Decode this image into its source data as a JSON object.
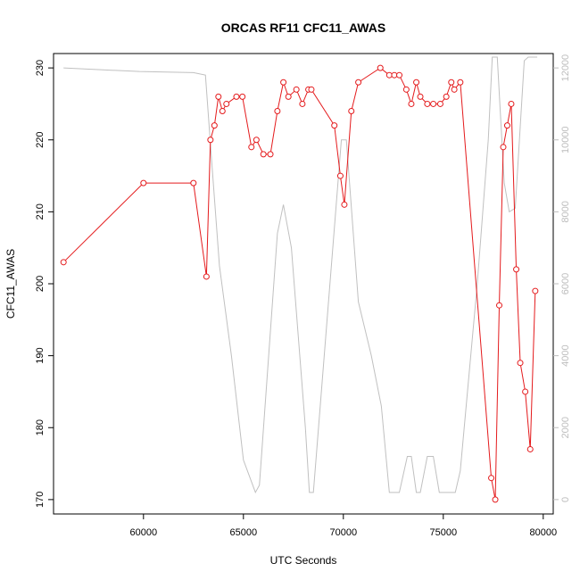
{
  "chart_data": {
    "type": "line",
    "title": "ORCAS RF11 CFC11_AWAS",
    "xlabel": "UTC Seconds",
    "ylabel": "CFC11_AWAS",
    "xlim": [
      55500,
      80500
    ],
    "ylim": [
      168,
      232
    ],
    "y2lim": [
      -400,
      12400
    ],
    "grid": false,
    "x_ticks": [
      60000,
      65000,
      70000,
      75000,
      80000
    ],
    "y_ticks": [
      170,
      180,
      190,
      200,
      210,
      220,
      230
    ],
    "y2_ticks": [
      0,
      2000,
      4000,
      6000,
      8000,
      10000,
      12000
    ],
    "x_tick_labels": [
      "60000",
      "65000",
      "70000",
      "75000",
      "80000"
    ],
    "y_tick_labels": [
      "170",
      "180",
      "190",
      "200",
      "210",
      "220",
      "230"
    ],
    "y2_tick_labels": [
      "0",
      "2000",
      "4000",
      "6000",
      "8000",
      "10000",
      "12000"
    ],
    "colors": {
      "primary": "#e41a1c",
      "secondary": "#c0c0c0"
    },
    "series": [
      {
        "axis": "left",
        "style": "line+markers",
        "points": [
          [
            56000,
            203
          ],
          [
            60000,
            214
          ],
          [
            62500,
            214
          ],
          [
            63150,
            201
          ],
          [
            63350,
            220
          ],
          [
            63550,
            222
          ],
          [
            63750,
            226
          ],
          [
            63950,
            224
          ],
          [
            64150,
            225
          ],
          [
            64650,
            226
          ],
          [
            64950,
            226
          ],
          [
            65400,
            219
          ],
          [
            65650,
            220
          ],
          [
            66000,
            218
          ],
          [
            66350,
            218
          ],
          [
            66700,
            224
          ],
          [
            67000,
            228
          ],
          [
            67250,
            226
          ],
          [
            67650,
            227
          ],
          [
            67950,
            225
          ],
          [
            68250,
            227
          ],
          [
            68400,
            227
          ],
          [
            69550,
            222
          ],
          [
            69850,
            215
          ],
          [
            70050,
            211
          ],
          [
            70400,
            224
          ],
          [
            70750,
            228
          ],
          [
            71850,
            230
          ],
          [
            72300,
            229
          ],
          [
            72550,
            229
          ],
          [
            72800,
            229
          ],
          [
            73150,
            227
          ],
          [
            73400,
            225
          ],
          [
            73650,
            228
          ],
          [
            73850,
            226
          ],
          [
            74200,
            225
          ],
          [
            74500,
            225
          ],
          [
            74850,
            225
          ],
          [
            75150,
            226
          ],
          [
            75400,
            228
          ],
          [
            75550,
            227
          ],
          [
            75850,
            228
          ],
          [
            77400,
            173
          ],
          [
            77600,
            170
          ],
          [
            77800,
            197
          ],
          [
            78000,
            219
          ],
          [
            78200,
            222
          ],
          [
            78400,
            225
          ],
          [
            78650,
            202
          ],
          [
            78850,
            189
          ],
          [
            79100,
            185
          ],
          [
            79350,
            177
          ],
          [
            79600,
            199
          ]
        ]
      },
      {
        "axis": "right",
        "style": "line",
        "points": [
          [
            56000,
            12000
          ],
          [
            59800,
            11900
          ],
          [
            62500,
            11870
          ],
          [
            63100,
            11800
          ],
          [
            63400,
            9500
          ],
          [
            63800,
            6500
          ],
          [
            64400,
            4000
          ],
          [
            65000,
            1100
          ],
          [
            65600,
            200
          ],
          [
            65800,
            400
          ],
          [
            66700,
            7400
          ],
          [
            67000,
            8200
          ],
          [
            67400,
            7000
          ],
          [
            68100,
            2000
          ],
          [
            68300,
            200
          ],
          [
            68500,
            200
          ],
          [
            69900,
            10000
          ],
          [
            70150,
            10000
          ],
          [
            70750,
            5500
          ],
          [
            71400,
            4000
          ],
          [
            71900,
            2600
          ],
          [
            72300,
            200
          ],
          [
            72800,
            200
          ],
          [
            73200,
            1200
          ],
          [
            73400,
            1200
          ],
          [
            73650,
            200
          ],
          [
            73850,
            200
          ],
          [
            74200,
            1200
          ],
          [
            74500,
            1200
          ],
          [
            74800,
            200
          ],
          [
            75600,
            200
          ],
          [
            75850,
            800
          ],
          [
            76700,
            6000
          ],
          [
            77250,
            10000
          ],
          [
            77450,
            12300
          ],
          [
            77700,
            12300
          ],
          [
            78050,
            8800
          ],
          [
            78300,
            8000
          ],
          [
            78600,
            8100
          ],
          [
            79050,
            12200
          ],
          [
            79250,
            12300
          ],
          [
            79700,
            12300
          ]
        ]
      }
    ]
  }
}
